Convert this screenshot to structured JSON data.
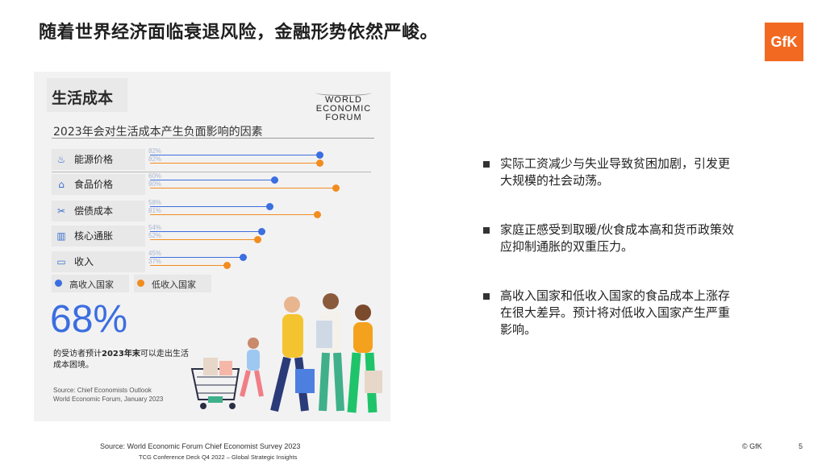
{
  "slide": {
    "title": "随着世界经济面临衰退风险，金融形势依然严峻。",
    "logo_text": "GfK",
    "brand_color": "#f26a21"
  },
  "panel": {
    "heading": "生活成本",
    "wef_logo": [
      "WORLD",
      "ECONOMIC",
      "FORUM"
    ],
    "big_number": "68%",
    "stat_caption_pre": "的受访者预计",
    "stat_caption_bold": "2023年末",
    "stat_caption_post": "可以走出生活成本困境。",
    "source_lines": [
      "Source: Chief Economists Outlook",
      "World Economic Forum, January 2023"
    ]
  },
  "chart_data": {
    "type": "dot",
    "title": "2023年会对生活成本产生负面影响的因素",
    "categories": [
      "能源价格",
      "食品价格",
      "偿债成本",
      "核心通胀",
      "收入"
    ],
    "category_icons": [
      "energy-icon",
      "food-icon",
      "debt-icon",
      "inflation-icon",
      "income-icon"
    ],
    "series": [
      {
        "name": "高收入国家",
        "color": "#3b6ee0",
        "values": [
          82,
          60,
          58,
          54,
          45
        ]
      },
      {
        "name": "低收入国家",
        "color": "#f28c1e",
        "values": [
          82,
          90,
          81,
          52,
          37
        ]
      }
    ],
    "value_labels": {
      "高收入国家": [
        "82%",
        "60%",
        "58%",
        "54%",
        "45%"
      ],
      "低收入国家": [
        "82%",
        "90%",
        "81%",
        "52%",
        "37%"
      ]
    },
    "xlim": [
      0,
      100
    ],
    "legend_position": "bottom-left"
  },
  "bullets": [
    "实际工资减少与失业导致贫困加剧，引发更大规模的社会动荡。",
    "家庭正感受到取暖/伙食成本高和货币政策效应抑制通胀的双重压力。",
    "高收入国家和低收入国家的食品成本上涨存在很大差异。预计将对低收入国家产生严重影响。"
  ],
  "footer": {
    "source": "Source: World Economic Forum Chief Economist Survey 2023",
    "deck": "TCG Conference Deck Q4 2022 – Global Strategic Insights",
    "copyright": "© GfK",
    "page": "5"
  }
}
